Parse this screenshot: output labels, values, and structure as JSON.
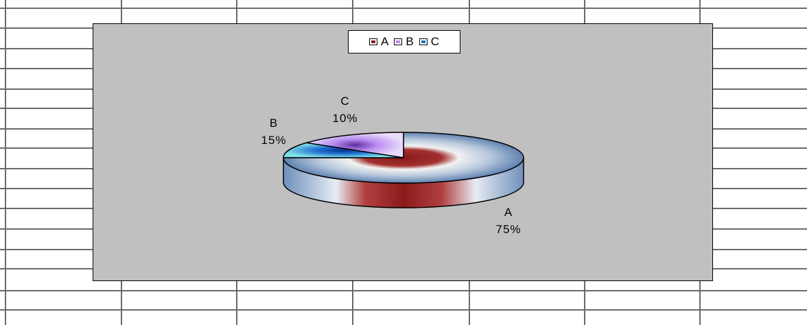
{
  "chart_data": {
    "type": "pie",
    "categories": [
      "A",
      "B",
      "C"
    ],
    "values": [
      75,
      15,
      10
    ],
    "value_labels": [
      "75%",
      "15%",
      "10%"
    ],
    "legend_placement": "top-center",
    "three_d": true,
    "colors": {
      "A": "#8b1a1a",
      "B": "#b98cf0",
      "C": "#1f6fd1",
      "plot_background": "#c0c0c0"
    }
  }
}
